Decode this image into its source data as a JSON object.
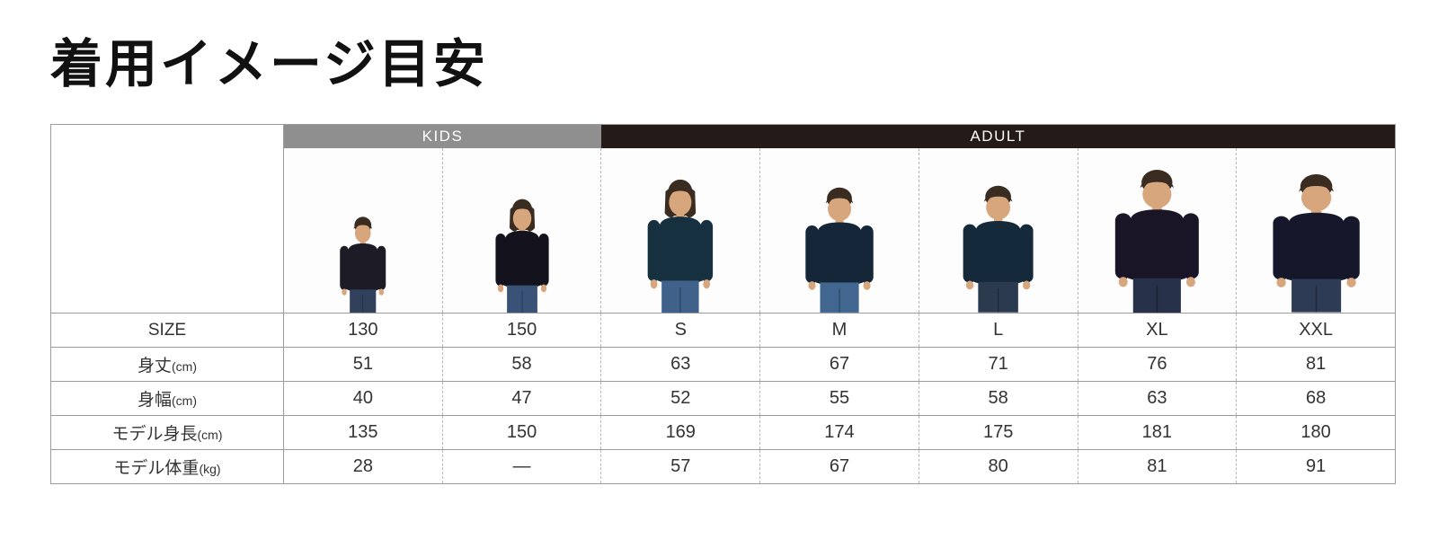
{
  "page": {
    "title": "着用イメージ目安"
  },
  "table": {
    "group_headers": [
      {
        "label": "KIDS",
        "colspan": 2,
        "bg": "#8f8f8f"
      },
      {
        "label": "ADULT",
        "colspan": 5,
        "bg": "#241b18"
      }
    ],
    "rows": [
      {
        "label": "SIZE",
        "unit": "",
        "values": [
          "130",
          "150",
          "S",
          "M",
          "L",
          "XL",
          "XXL"
        ]
      },
      {
        "label": "身丈",
        "unit": "(cm)",
        "values": [
          "51",
          "58",
          "63",
          "67",
          "71",
          "76",
          "81"
        ]
      },
      {
        "label": "身幅",
        "unit": "(cm)",
        "values": [
          "40",
          "47",
          "52",
          "55",
          "58",
          "63",
          "68"
        ]
      },
      {
        "label": "モデル身長",
        "unit": "(cm)",
        "values": [
          "135",
          "150",
          "169",
          "174",
          "175",
          "181",
          "180"
        ]
      },
      {
        "label": "モデル体重",
        "unit": "(kg)",
        "values": [
          "28",
          "—",
          "57",
          "67",
          "80",
          "81",
          "91"
        ]
      }
    ],
    "models": [
      {
        "size": "130",
        "group": "KIDS",
        "height_pct": 59,
        "width_factor": 0.9,
        "hair": "short",
        "shirt": "#1d1b26",
        "jeans": "#31415c"
      },
      {
        "size": "150",
        "group": "KIDS",
        "height_pct": 70,
        "width_factor": 0.88,
        "hair": "long",
        "shirt": "#14121d",
        "jeans": "#3a5276"
      },
      {
        "size": "S",
        "group": "ADULT",
        "height_pct": 82,
        "width_factor": 0.92,
        "hair": "long",
        "shirt": "#16303f",
        "jeans": "#3f618a"
      },
      {
        "size": "M",
        "group": "ADULT",
        "height_pct": 77,
        "width_factor": 1.02,
        "hair": "short",
        "shirt": "#152638",
        "jeans": "#41668f"
      },
      {
        "size": "L",
        "group": "ADULT",
        "height_pct": 78,
        "width_factor": 1.04,
        "hair": "short",
        "shirt": "#14293a",
        "jeans": "#2c3a50"
      },
      {
        "size": "XL",
        "group": "ADULT",
        "height_pct": 88,
        "width_factor": 1.1,
        "hair": "short",
        "shirt": "#191527",
        "jeans": "#27324a"
      },
      {
        "size": "XXL",
        "group": "ADULT",
        "height_pct": 85,
        "width_factor": 1.18,
        "hair": "short",
        "shirt": "#15182b",
        "jeans": "#2e3b55"
      }
    ],
    "colors": {
      "kids_header_bg": "#8f8f8f",
      "adult_header_bg": "#241b18",
      "header_text": "#ffffff",
      "border": "#9c9c9c",
      "dashed_border": "#b8b8b8",
      "text": "#333333",
      "skin": "#d7a67d",
      "hair": "#3a2c21"
    }
  },
  "chart_data": {
    "type": "table",
    "title": "着用イメージ目安",
    "column_groups": [
      {
        "label": "KIDS",
        "span": 2
      },
      {
        "label": "ADULT",
        "span": 5
      }
    ],
    "columns": [
      "130",
      "150",
      "S",
      "M",
      "L",
      "XL",
      "XXL"
    ],
    "rows": [
      {
        "label": "身丈(cm)",
        "values": [
          51,
          58,
          63,
          67,
          71,
          76,
          81
        ]
      },
      {
        "label": "身幅(cm)",
        "values": [
          40,
          47,
          52,
          55,
          58,
          63,
          68
        ]
      },
      {
        "label": "モデル身長(cm)",
        "values": [
          135,
          150,
          169,
          174,
          175,
          181,
          180
        ]
      },
      {
        "label": "モデル体重(kg)",
        "values": [
          28,
          null,
          57,
          67,
          80,
          81,
          91
        ]
      }
    ],
    "notes": "モデル体重 for size 150 is shown as a dash (—)"
  }
}
